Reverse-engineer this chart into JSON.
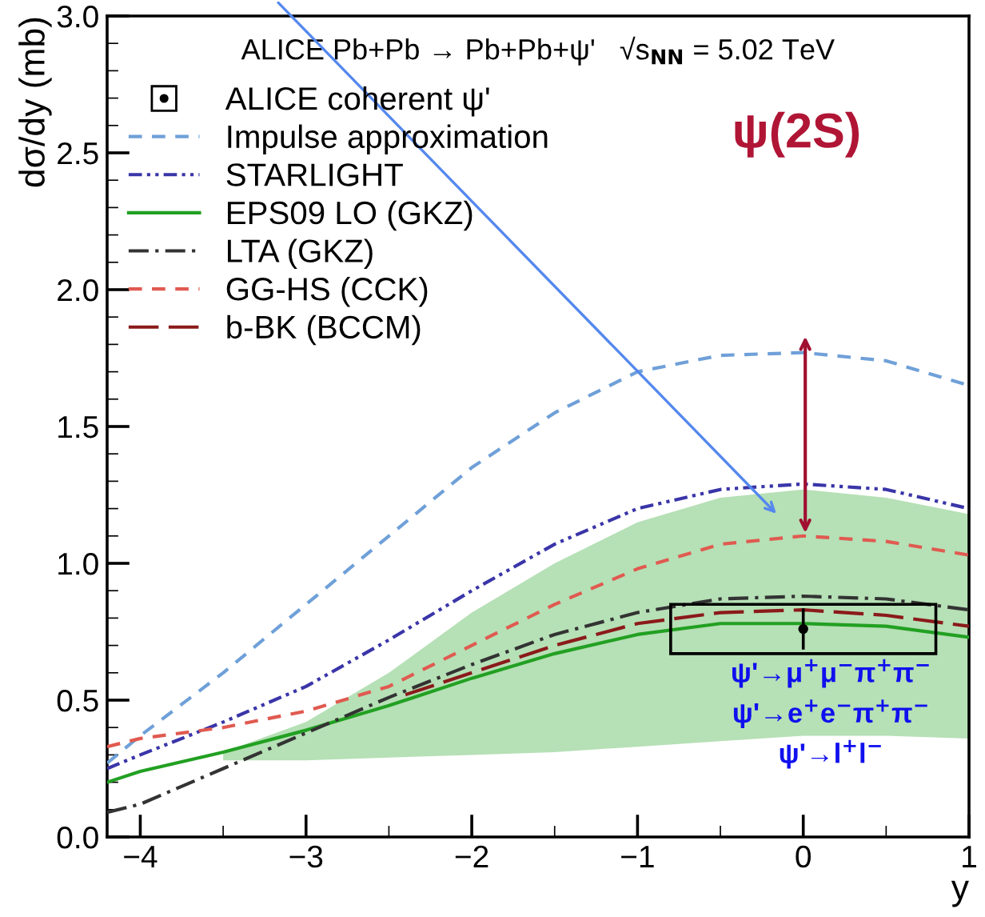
{
  "chart_data": {
    "type": "line",
    "title": "ALICE Pb+Pb → Pb+Pb+ψ'   √s$_{NN}$ = 5.02 TeV",
    "xlabel": "y",
    "ylabel": "dσ/dy (mb)",
    "xlim": [
      -4.2,
      1.0
    ],
    "ylim": [
      0,
      3.0
    ],
    "xticks": [
      {
        "value": -4,
        "label": "−4"
      },
      {
        "value": -3,
        "label": "−3"
      },
      {
        "value": -2,
        "label": "−2"
      },
      {
        "value": -1,
        "label": "−1"
      },
      0,
      1
    ],
    "yticks": [
      {
        "value": 0,
        "label": "0.0"
      },
      0.5,
      {
        "value": 1,
        "label": "1.0"
      },
      1.5,
      {
        "value": 2,
        "label": "2.0"
      },
      2.5,
      {
        "value": 3,
        "label": "3.0"
      }
    ],
    "grid": false,
    "legend": "top left",
    "series": [
      {
        "type": "bar",
        "color": "#000000",
        "x": [
          0
        ],
        "base": [
          0.67
        ],
        "values": [
          0.18
        ]
      },
      {
        "name": "ALICE coherent ψ'",
        "type": "scatter",
        "marker": "circle",
        "color": "#000000",
        "x": [
          0
        ],
        "values": [
          0.76
        ],
        "errors": [
          [
            0.69,
            0.83
          ]
        ]
      },
      {
        "name": "Impulse approximation",
        "color": "#6fa0d8",
        "line_style": "dashed",
        "x": [
          -4.2,
          -4,
          -3.5,
          -3,
          -2.5,
          -2,
          -1.5,
          -1,
          -0.5,
          0,
          0.5,
          1
        ],
        "values": [
          0.27,
          0.37,
          0.6,
          0.85,
          1.1,
          1.35,
          1.55,
          1.7,
          1.76,
          1.77,
          1.74,
          1.65
        ]
      },
      {
        "name": "STARLIGHT",
        "color": "#3a35a8",
        "line_style": "dashdotdot",
        "x": [
          -4.2,
          -4,
          -3.5,
          -3,
          -2.5,
          -2,
          -1.5,
          -1,
          -0.5,
          0,
          0.5,
          1
        ],
        "values": [
          0.25,
          0.3,
          0.42,
          0.55,
          0.72,
          0.9,
          1.07,
          1.2,
          1.27,
          1.29,
          1.27,
          1.2
        ]
      },
      {
        "name": "EPS09 LO (GKZ)",
        "color": "#22a022",
        "line_style": "solid",
        "x": [
          -4.2,
          -4,
          -3.5,
          -3,
          -2.5,
          -2,
          -1.5,
          -1,
          -0.5,
          0,
          0.5,
          1
        ],
        "values": [
          0.2,
          0.24,
          0.31,
          0.39,
          0.48,
          0.58,
          0.67,
          0.74,
          0.78,
          0.78,
          0.77,
          0.73
        ],
        "lower": [
          null,
          null,
          0.28,
          0.28,
          0.29,
          0.3,
          0.31,
          0.33,
          0.35,
          0.37,
          0.37,
          0.36
        ],
        "upper": [
          null,
          null,
          0.31,
          0.42,
          0.6,
          0.82,
          1.0,
          1.15,
          1.24,
          1.27,
          1.24,
          1.18
        ]
      },
      {
        "name": "LTA (GKZ)",
        "color": "#333333",
        "line_style": "dashdot",
        "x": [
          -4.2,
          -4,
          -3.5,
          -3,
          -2.5,
          -2,
          -1.5,
          -1,
          -0.5,
          0,
          0.5,
          1
        ],
        "values": [
          0.09,
          0.12,
          0.25,
          0.38,
          0.51,
          0.63,
          0.74,
          0.82,
          0.87,
          0.88,
          0.87,
          0.83
        ]
      },
      {
        "name": "GG-HS (CCK)",
        "color": "#e05a50",
        "line_style": "dashed",
        "x": [
          -4.2,
          -4,
          -3.5,
          -3,
          -2.5,
          -2,
          -1.5,
          -1,
          -0.5,
          0,
          0.5,
          1
        ],
        "values": [
          0.33,
          0.36,
          0.4,
          0.46,
          0.55,
          0.7,
          0.85,
          0.98,
          1.07,
          1.1,
          1.08,
          1.03
        ]
      },
      {
        "name": "b-BK (BCCM)",
        "color": "#8b1a1a",
        "line_style": "longdash",
        "x": [
          -2.4,
          -2,
          -1.5,
          -1,
          -0.5,
          0,
          0.5,
          1
        ],
        "values": [
          0.52,
          0.6,
          0.7,
          0.78,
          0.82,
          0.83,
          0.81,
          0.77
        ]
      }
    ],
    "annotations": [
      "ψ(2S)",
      "ψ'→μ$^{+}$μ$^{−}$π$^{+}$π$^{−}$\nψ'→e$^{+}$e$^{−}$π$^{+}$π$^{−}$\nψ'→l$^{+}$l$^{−}$"
    ]
  }
}
